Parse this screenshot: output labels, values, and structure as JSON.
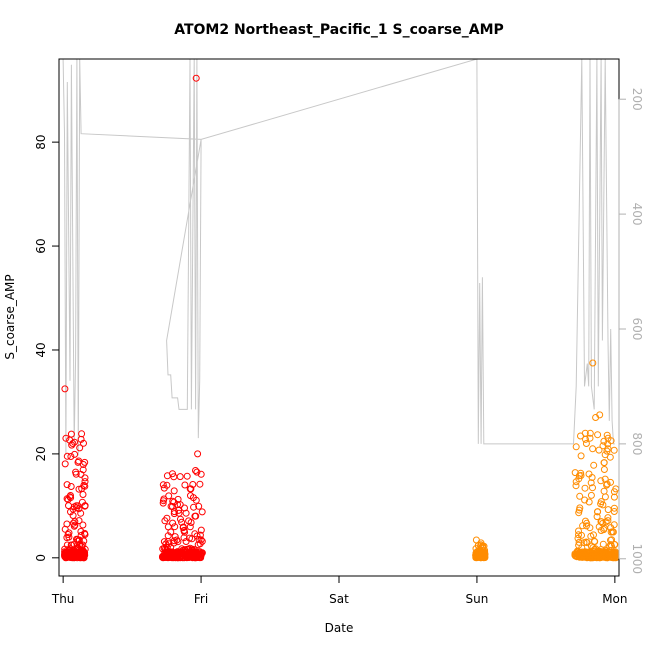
{
  "chart_data": {
    "type": "scatter",
    "title": "ATOM2 Northeast_Pacific_1 S_coarse_AMP",
    "xlabel": "Date",
    "ylabel": "S_coarse_AMP",
    "xlim": [
      -0.03,
      4.03
    ],
    "ylim": [
      -3.5,
      96
    ],
    "x_ticks": [
      {
        "value": 0,
        "label": "Thu"
      },
      {
        "value": 1,
        "label": "Fri"
      },
      {
        "value": 2,
        "label": "Sat"
      },
      {
        "value": 3,
        "label": "Sun"
      },
      {
        "value": 4,
        "label": "Mon"
      }
    ],
    "y_ticks": [
      0,
      20,
      40,
      60,
      80
    ],
    "secondary_axis": {
      "reversed": true,
      "range": [
        1030,
        130
      ],
      "ticks": [
        200,
        400,
        600,
        800,
        1000
      ],
      "color": "#b0b0b0"
    },
    "series": [
      {
        "color": "#ff0000",
        "marker": "open-circle",
        "clusters": [
          {
            "start": 0.01,
            "end": 0.16,
            "max": 24,
            "n": 260
          },
          {
            "start": 0.72,
            "end": 1.01,
            "max": 17,
            "n": 300
          }
        ],
        "highlights": [
          [
            0.013,
            32.5
          ],
          [
            0.02,
            23
          ],
          [
            0.06,
            23.8
          ],
          [
            0.07,
            22
          ],
          [
            0.09,
            16.5
          ],
          [
            0.97,
            16.5
          ],
          [
            0.975,
            20
          ],
          [
            0.965,
            92.3
          ]
        ]
      },
      {
        "color": "#ff8c00",
        "marker": "open-circle",
        "clusters": [
          {
            "start": 2.99,
            "end": 3.06,
            "max": 3.5,
            "n": 90
          },
          {
            "start": 3.71,
            "end": 4.01,
            "max": 24,
            "n": 320
          }
        ],
        "highlights": [
          [
            3.84,
            37.5
          ],
          [
            3.86,
            27
          ],
          [
            3.89,
            27.5
          ],
          [
            3.95,
            23
          ],
          [
            3.95,
            21
          ]
        ]
      }
    ],
    "depth_track": {
      "color": "#c8c8c8",
      "points": [
        [
          0.0,
          130
        ],
        [
          0.01,
          260
        ],
        [
          0.02,
          820
        ],
        [
          0.03,
          170
        ],
        [
          0.05,
          690
        ],
        [
          0.06,
          140
        ],
        [
          0.08,
          800
        ],
        [
          0.09,
          650
        ],
        [
          0.1,
          130
        ],
        [
          0.11,
          820
        ],
        [
          0.12,
          130
        ],
        [
          0.13,
          260
        ],
        [
          1.0,
          270
        ],
        [
          0.75,
          620
        ],
        [
          0.76,
          680
        ],
        [
          0.78,
          680
        ],
        [
          0.79,
          720
        ],
        [
          0.83,
          720
        ],
        [
          0.84,
          740
        ],
        [
          0.9,
          740
        ],
        [
          0.92,
          130
        ],
        [
          0.93,
          740
        ],
        [
          0.95,
          130
        ],
        [
          0.96,
          740
        ],
        [
          0.97,
          130
        ],
        [
          0.98,
          790
        ],
        [
          0.99,
          690
        ],
        [
          1.0,
          270
        ],
        [
          3.0,
          130
        ],
        [
          3.01,
          800
        ],
        [
          3.02,
          520
        ],
        [
          3.03,
          800
        ],
        [
          3.04,
          510
        ],
        [
          3.05,
          800
        ],
        [
          3.3,
          800
        ],
        [
          3.7,
          800
        ],
        [
          3.72,
          700
        ],
        [
          3.76,
          130
        ],
        [
          3.78,
          700
        ],
        [
          3.8,
          660
        ],
        [
          3.81,
          700
        ],
        [
          3.82,
          130
        ],
        [
          3.83,
          700
        ],
        [
          3.85,
          740
        ],
        [
          3.87,
          130
        ],
        [
          3.88,
          700
        ],
        [
          3.9,
          130
        ],
        [
          3.91,
          620
        ],
        [
          3.93,
          130
        ],
        [
          3.95,
          620
        ],
        [
          3.96,
          760
        ],
        [
          3.97,
          600
        ],
        [
          3.98,
          760
        ],
        [
          3.99,
          800
        ],
        [
          4.0,
          800
        ]
      ]
    }
  }
}
